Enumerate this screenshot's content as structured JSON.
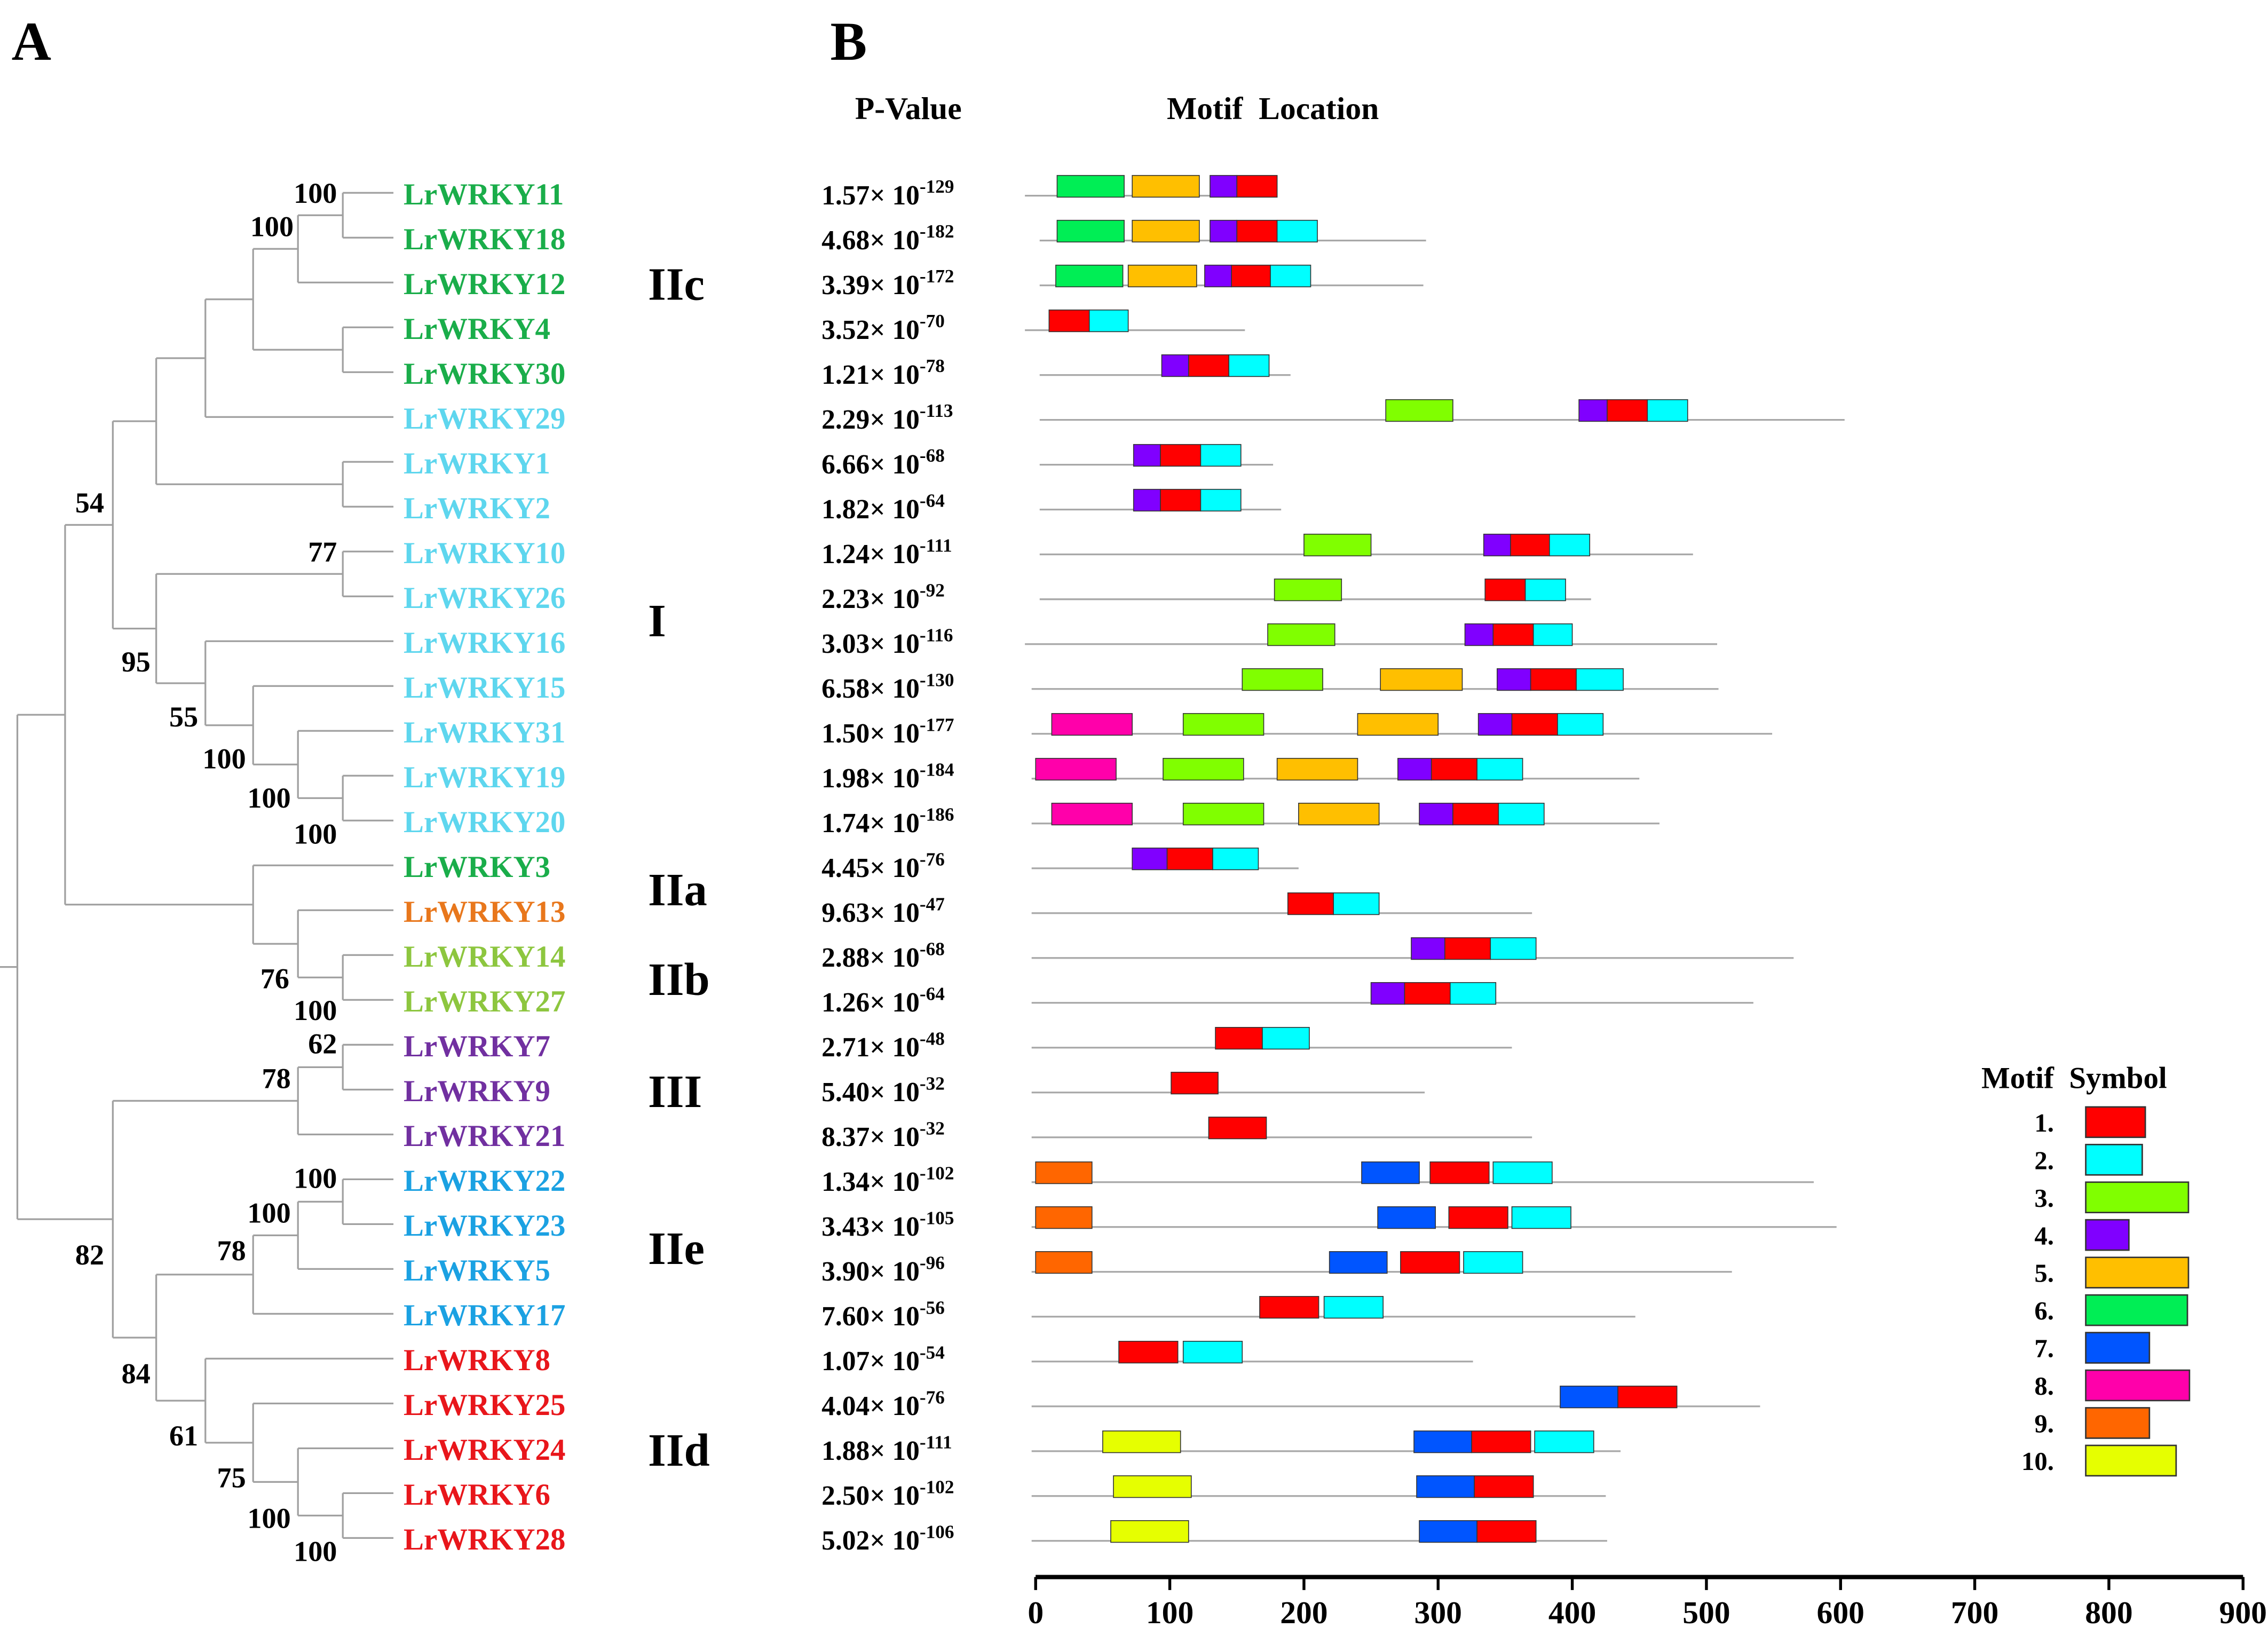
{
  "panels": {
    "a": "A",
    "b": "B"
  },
  "headers": {
    "pvalue": "P-Value",
    "motif_location": "Motif  Location"
  },
  "times": "×",
  "pvalue_base": "10",
  "genes": [
    {
      "name": "LrWRKY11",
      "color": "#1aad4a",
      "mantissa": "1.57",
      "exp": "-129",
      "len": 180,
      "start": -8,
      "motifs": [
        [
          6,
          16,
          66
        ],
        [
          5,
          72,
          122
        ],
        [
          4,
          130,
          150
        ],
        [
          1,
          150,
          180
        ]
      ]
    },
    {
      "name": "LrWRKY18",
      "color": "#1aad4a",
      "mantissa": "4.68",
      "exp": "-182",
      "len": 291,
      "start": 3,
      "motifs": [
        [
          6,
          16,
          66
        ],
        [
          5,
          72,
          122
        ],
        [
          4,
          130,
          150
        ],
        [
          1,
          150,
          180
        ],
        [
          2,
          180,
          210
        ]
      ]
    },
    {
      "name": "LrWRKY12",
      "color": "#1aad4a",
      "mantissa": "3.39",
      "exp": "-172",
      "len": 289,
      "start": 3,
      "motifs": [
        [
          6,
          15,
          65
        ],
        [
          5,
          69,
          120
        ],
        [
          4,
          126,
          146
        ],
        [
          1,
          146,
          175
        ],
        [
          2,
          175,
          205
        ]
      ]
    },
    {
      "name": "LrWRKY4",
      "color": "#1aad4a",
      "mantissa": "3.52",
      "exp": "-70",
      "len": 156,
      "start": -8,
      "motifs": [
        [
          1,
          10,
          40
        ],
        [
          2,
          40,
          69
        ]
      ]
    },
    {
      "name": "LrWRKY30",
      "color": "#1aad4a",
      "mantissa": "1.21",
      "exp": "-78",
      "len": 190,
      "start": 3,
      "motifs": [
        [
          4,
          94,
          114
        ],
        [
          1,
          114,
          144
        ],
        [
          2,
          144,
          174
        ]
      ]
    },
    {
      "name": "LrWRKY29",
      "color": "#5ed6ee",
      "mantissa": "2.29",
      "exp": "-113",
      "len": 603,
      "start": 3,
      "motifs": [
        [
          3,
          261,
          311
        ],
        [
          4,
          405,
          426
        ],
        [
          1,
          426,
          456
        ],
        [
          2,
          456,
          486
        ]
      ]
    },
    {
      "name": "LrWRKY1",
      "color": "#5ed6ee",
      "mantissa": "6.66",
      "exp": "-68",
      "len": 177,
      "start": 3,
      "motifs": [
        [
          4,
          73,
          93
        ],
        [
          1,
          93,
          123
        ],
        [
          2,
          123,
          153
        ]
      ]
    },
    {
      "name": "LrWRKY2",
      "color": "#5ed6ee",
      "mantissa": "1.82",
      "exp": "-64",
      "len": 183,
      "start": 3,
      "motifs": [
        [
          4,
          73,
          93
        ],
        [
          1,
          93,
          123
        ],
        [
          2,
          123,
          153
        ]
      ]
    },
    {
      "name": "LrWRKY10",
      "color": "#5ed6ee",
      "mantissa": "1.24",
      "exp": "-111",
      "len": 490,
      "start": 3,
      "motifs": [
        [
          3,
          200,
          250
        ],
        [
          4,
          334,
          354
        ],
        [
          1,
          354,
          383
        ],
        [
          2,
          383,
          413
        ]
      ]
    },
    {
      "name": "LrWRKY26",
      "color": "#5ed6ee",
      "mantissa": "2.23",
      "exp": "-92",
      "len": 414,
      "start": 3,
      "motifs": [
        [
          3,
          178,
          228
        ],
        [
          1,
          335,
          365
        ],
        [
          2,
          365,
          395
        ]
      ]
    },
    {
      "name": "LrWRKY16",
      "color": "#5ed6ee",
      "mantissa": "3.03",
      "exp": "-116",
      "len": 508,
      "start": -8,
      "motifs": [
        [
          3,
          173,
          223
        ],
        [
          4,
          320,
          341
        ],
        [
          1,
          341,
          371
        ],
        [
          2,
          371,
          400
        ]
      ]
    },
    {
      "name": "LrWRKY15",
      "color": "#5ed6ee",
      "mantissa": "6.58",
      "exp": "-130",
      "len": 509,
      "start": -3,
      "motifs": [
        [
          3,
          154,
          214
        ],
        [
          5,
          257,
          318
        ],
        [
          4,
          344,
          369
        ],
        [
          1,
          369,
          403
        ],
        [
          2,
          403,
          438
        ]
      ]
    },
    {
      "name": "LrWRKY31",
      "color": "#5ed6ee",
      "mantissa": "1.50",
      "exp": "-177",
      "len": 549,
      "start": -3,
      "motifs": [
        [
          8,
          12,
          72
        ],
        [
          3,
          110,
          170
        ],
        [
          5,
          240,
          300
        ],
        [
          4,
          330,
          355
        ],
        [
          1,
          355,
          389
        ],
        [
          2,
          389,
          423
        ]
      ]
    },
    {
      "name": "LrWRKY19",
      "color": "#5ed6ee",
      "mantissa": "1.98",
      "exp": "-184",
      "len": 450,
      "start": -3,
      "motifs": [
        [
          8,
          0,
          60
        ],
        [
          3,
          95,
          155
        ],
        [
          5,
          180,
          240
        ],
        [
          4,
          270,
          295
        ],
        [
          1,
          295,
          329
        ],
        [
          2,
          329,
          363
        ]
      ]
    },
    {
      "name": "LrWRKY20",
      "color": "#5ed6ee",
      "mantissa": "1.74",
      "exp": "-186",
      "len": 465,
      "start": -3,
      "motifs": [
        [
          8,
          12,
          72
        ],
        [
          3,
          110,
          170
        ],
        [
          5,
          196,
          256
        ],
        [
          4,
          286,
          311
        ],
        [
          1,
          311,
          345
        ],
        [
          2,
          345,
          379
        ]
      ]
    },
    {
      "name": "LrWRKY3",
      "color": "#1aad4a",
      "mantissa": "4.45",
      "exp": "-76",
      "len": 196,
      "start": -3,
      "motifs": [
        [
          4,
          72,
          98
        ],
        [
          1,
          98,
          132
        ],
        [
          2,
          132,
          166
        ]
      ]
    },
    {
      "name": "LrWRKY13",
      "color": "#e8771c",
      "mantissa": "9.63",
      "exp": "-47",
      "len": 370,
      "start": -3,
      "motifs": [
        [
          1,
          188,
          222
        ],
        [
          2,
          222,
          256
        ]
      ]
    },
    {
      "name": "LrWRKY14",
      "color": "#8dc63f",
      "mantissa": "2.88",
      "exp": "-68",
      "len": 565,
      "start": -3,
      "motifs": [
        [
          4,
          280,
          305
        ],
        [
          1,
          305,
          339
        ],
        [
          2,
          339,
          373
        ]
      ]
    },
    {
      "name": "LrWRKY27",
      "color": "#8dc63f",
      "mantissa": "1.26",
      "exp": "-64",
      "len": 535,
      "start": -3,
      "motifs": [
        [
          4,
          250,
          275
        ],
        [
          1,
          275,
          309
        ],
        [
          2,
          309,
          343
        ]
      ]
    },
    {
      "name": "LrWRKY7",
      "color": "#7130a0",
      "mantissa": "2.71",
      "exp": "-48",
      "len": 355,
      "start": -3,
      "motifs": [
        [
          1,
          134,
          169
        ],
        [
          2,
          169,
          204
        ]
      ]
    },
    {
      "name": "LrWRKY9",
      "color": "#7130a0",
      "mantissa": "5.40",
      "exp": "-32",
      "len": 290,
      "start": -3,
      "motifs": [
        [
          1,
          101,
          136
        ]
      ]
    },
    {
      "name": "LrWRKY21",
      "color": "#7130a0",
      "mantissa": "8.37",
      "exp": "-32",
      "len": 370,
      "start": -3,
      "motifs": [
        [
          1,
          129,
          172
        ]
      ]
    },
    {
      "name": "LrWRKY22",
      "color": "#1ba1e2",
      "mantissa": "1.34",
      "exp": "-102",
      "len": 580,
      "start": -3,
      "motifs": [
        [
          9,
          0,
          42
        ],
        [
          7,
          243,
          286
        ],
        [
          1,
          294,
          338
        ],
        [
          2,
          341,
          385
        ]
      ]
    },
    {
      "name": "LrWRKY23",
      "color": "#1ba1e2",
      "mantissa": "3.43",
      "exp": "-105",
      "len": 597,
      "start": -3,
      "motifs": [
        [
          9,
          0,
          42
        ],
        [
          7,
          255,
          298
        ],
        [
          1,
          308,
          352
        ],
        [
          2,
          355,
          399
        ]
      ]
    },
    {
      "name": "LrWRKY5",
      "color": "#1ba1e2",
      "mantissa": "3.90",
      "exp": "-96",
      "len": 519,
      "start": -3,
      "motifs": [
        [
          9,
          0,
          42
        ],
        [
          7,
          219,
          262
        ],
        [
          1,
          272,
          316
        ],
        [
          2,
          319,
          363
        ]
      ]
    },
    {
      "name": "LrWRKY17",
      "color": "#1ba1e2",
      "mantissa": "7.60",
      "exp": "-56",
      "len": 447,
      "start": -3,
      "motifs": [
        [
          1,
          167,
          211
        ],
        [
          2,
          215,
          259
        ]
      ]
    },
    {
      "name": "LrWRKY8",
      "color": "#e8161b",
      "mantissa": "1.07",
      "exp": "-54",
      "len": 326,
      "start": -3,
      "motifs": [
        [
          1,
          62,
          106
        ],
        [
          2,
          110,
          154
        ]
      ]
    },
    {
      "name": "LrWRKY25",
      "color": "#e8161b",
      "mantissa": "4.04",
      "exp": "-76",
      "len": 540,
      "start": -3,
      "motifs": [
        [
          7,
          391,
          434
        ],
        [
          1,
          434,
          478
        ]
      ]
    },
    {
      "name": "LrWRKY24",
      "color": "#e8161b",
      "mantissa": "1.88",
      "exp": "-111",
      "len": 436,
      "start": -3,
      "motifs": [
        [
          10,
          50,
          108
        ],
        [
          7,
          282,
          325
        ],
        [
          1,
          325,
          369
        ],
        [
          2,
          372,
          416
        ]
      ]
    },
    {
      "name": "LrWRKY6",
      "color": "#e8161b",
      "mantissa": "2.50",
      "exp": "-102",
      "len": 425,
      "start": -3,
      "motifs": [
        [
          10,
          58,
          116
        ],
        [
          7,
          284,
          327
        ],
        [
          1,
          327,
          371
        ]
      ]
    },
    {
      "name": "LrWRKY28",
      "color": "#e8161b",
      "mantissa": "5.02",
      "exp": "-106",
      "len": 426,
      "start": -3,
      "motifs": [
        [
          10,
          56,
          114
        ],
        [
          7,
          286,
          329
        ],
        [
          1,
          329,
          373
        ]
      ]
    }
  ],
  "groups": [
    {
      "label": "IIc",
      "first": 0,
      "last": 4
    },
    {
      "label": "I",
      "first": 5,
      "last": 14
    },
    {
      "label": "IIa",
      "first": 15,
      "last": 16
    },
    {
      "label": "IIb",
      "first": 17,
      "last": 18
    },
    {
      "label": "III",
      "first": 19,
      "last": 21
    },
    {
      "label": "IIe",
      "first": 22,
      "last": 25
    },
    {
      "label": "IId",
      "first": 26,
      "last": 30
    }
  ],
  "bootstrap": [
    "100",
    "100",
    "54",
    "77",
    "95",
    "55",
    "100",
    "100",
    "100",
    "76",
    "100",
    "62",
    "78",
    "100",
    "100",
    "82",
    "78",
    "84",
    "61",
    "75",
    "100",
    "100"
  ],
  "legend": {
    "title": "Motif  Symbol",
    "motifs": [
      {
        "num": "1.",
        "color": "#ff0000",
        "width": 58
      },
      {
        "num": "2.",
        "color": "#00ffff",
        "width": 55
      },
      {
        "num": "3.",
        "color": "#80ff00",
        "width": 100
      },
      {
        "num": "4.",
        "color": "#8000ff",
        "width": 42
      },
      {
        "num": "5.",
        "color": "#ffbf00",
        "width": 100
      },
      {
        "num": "6.",
        "color": "#00ee55",
        "width": 99
      },
      {
        "num": "7.",
        "color": "#0055ff",
        "width": 62
      },
      {
        "num": "8.",
        "color": "#ff00aa",
        "width": 101
      },
      {
        "num": "9.",
        "color": "#ff6600",
        "width": 62
      },
      {
        "num": "10.",
        "color": "#e6ff00",
        "width": 88
      }
    ]
  },
  "chart_data": {
    "type": "motif-location",
    "x_ticks": [
      "0",
      "100",
      "200",
      "300",
      "400",
      "500",
      "600",
      "700",
      "800",
      "900"
    ],
    "xlim": [
      0,
      900
    ]
  }
}
